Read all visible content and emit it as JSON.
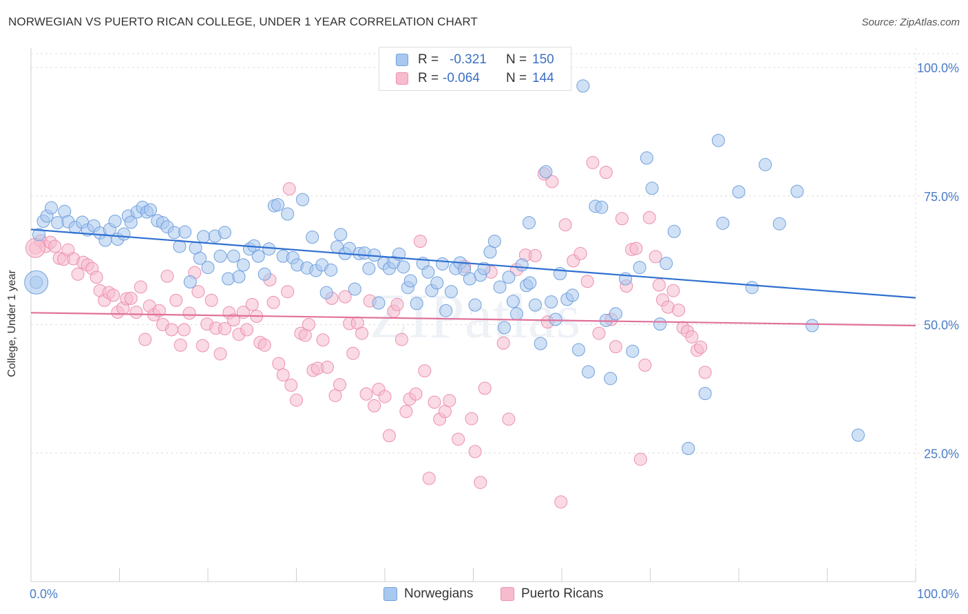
{
  "title": "NORWEGIAN VS PUERTO RICAN COLLEGE, UNDER 1 YEAR CORRELATION CHART",
  "source": "Source: ZipAtlas.com",
  "watermark": "ZIPatlas",
  "legend": {
    "rows": [
      {
        "r_label": "R =",
        "r_value": "-0.321",
        "n_label": "N =",
        "n_value": "150"
      },
      {
        "r_label": "R =",
        "r_value": "-0.064",
        "n_label": "N =",
        "n_value": "144"
      }
    ]
  },
  "bottom_legend": [
    "Norwegians",
    "Puerto Ricans"
  ],
  "colors": {
    "blue_fill": "#a9c8ef",
    "blue_stroke": "#6f9fdd",
    "blue_line": "#2f6fd0",
    "pink_fill": "#f6bccd",
    "pink_stroke": "#ec8fad",
    "pink_line": "#e0709a",
    "tick_text": "#4a7cc7",
    "grid": "#dcdcdc"
  },
  "chart_data": {
    "type": "scatter",
    "xlabel": "",
    "ylabel": "College, Under 1 year",
    "xlim": [
      0,
      100
    ],
    "ylim": [
      0,
      105
    ],
    "x_tick_labels": [
      "0.0%",
      "100.0%"
    ],
    "y_ticks": [
      25,
      50,
      75,
      100
    ],
    "y_tick_labels": [
      "25.0%",
      "50.0%",
      "75.0%",
      "100.0%"
    ],
    "grid": true,
    "series": [
      {
        "name": "Norwegians",
        "r": -0.321,
        "n": 150,
        "trend": {
          "x": [
            0,
            100
          ],
          "y": [
            68.5,
            55.2
          ]
        },
        "points": [
          [
            0.6,
            58.2
          ],
          [
            0.9,
            67.5
          ],
          [
            1.4,
            70.1
          ],
          [
            1.8,
            71.1
          ],
          [
            2.3,
            72.7
          ],
          [
            3.0,
            69.8
          ],
          [
            3.8,
            72.0
          ],
          [
            4.2,
            70.0
          ],
          [
            5.0,
            68.9
          ],
          [
            5.8,
            69.9
          ],
          [
            6.4,
            68.4
          ],
          [
            7.1,
            69.2
          ],
          [
            7.8,
            67.8
          ],
          [
            8.4,
            66.4
          ],
          [
            8.9,
            68.5
          ],
          [
            9.5,
            70.1
          ],
          [
            9.8,
            66.6
          ],
          [
            10.5,
            67.6
          ],
          [
            11.0,
            71.1
          ],
          [
            11.3,
            69.9
          ],
          [
            12.0,
            71.9
          ],
          [
            12.6,
            72.8
          ],
          [
            13.1,
            71.9
          ],
          [
            13.5,
            72.3
          ],
          [
            14.3,
            70.2
          ],
          [
            14.9,
            69.8
          ],
          [
            15.4,
            69.0
          ],
          [
            16.2,
            67.9
          ],
          [
            16.8,
            65.2
          ],
          [
            17.4,
            68.0
          ],
          [
            18.0,
            58.3
          ],
          [
            18.6,
            64.9
          ],
          [
            19.1,
            62.9
          ],
          [
            19.5,
            67.1
          ],
          [
            20.0,
            61.1
          ],
          [
            20.8,
            67.2
          ],
          [
            21.4,
            63.3
          ],
          [
            21.9,
            67.9
          ],
          [
            22.3,
            58.9
          ],
          [
            22.9,
            63.3
          ],
          [
            23.5,
            59.3
          ],
          [
            24.0,
            61.6
          ],
          [
            24.7,
            64.7
          ],
          [
            25.2,
            65.3
          ],
          [
            25.7,
            63.3
          ],
          [
            26.4,
            59.8
          ],
          [
            26.9,
            64.7
          ],
          [
            27.5,
            73.1
          ],
          [
            27.9,
            73.3
          ],
          [
            28.5,
            63.3
          ],
          [
            29.0,
            71.5
          ],
          [
            29.6,
            63.0
          ],
          [
            30.1,
            61.6
          ],
          [
            30.7,
            74.3
          ],
          [
            31.2,
            61.0
          ],
          [
            31.8,
            67.0
          ],
          [
            32.2,
            60.5
          ],
          [
            32.9,
            61.6
          ],
          [
            33.4,
            56.2
          ],
          [
            33.9,
            60.6
          ],
          [
            34.6,
            65.1
          ],
          [
            35.0,
            67.5
          ],
          [
            35.5,
            63.8
          ],
          [
            36.0,
            64.8
          ],
          [
            36.6,
            56.9
          ],
          [
            37.1,
            63.8
          ],
          [
            37.7,
            63.9
          ],
          [
            38.2,
            60.9
          ],
          [
            38.8,
            63.5
          ],
          [
            39.3,
            54.2
          ],
          [
            39.9,
            61.9
          ],
          [
            40.5,
            60.9
          ],
          [
            41.0,
            62.1
          ],
          [
            41.6,
            63.7
          ],
          [
            42.1,
            61.2
          ],
          [
            42.6,
            57.2
          ],
          [
            42.9,
            58.5
          ],
          [
            43.6,
            54.1
          ],
          [
            44.3,
            61.9
          ],
          [
            44.9,
            60.2
          ],
          [
            45.3,
            56.6
          ],
          [
            45.9,
            58.1
          ],
          [
            46.5,
            61.8
          ],
          [
            46.9,
            52.7
          ],
          [
            47.5,
            56.4
          ],
          [
            48.0,
            60.9
          ],
          [
            48.5,
            62.0
          ],
          [
            49.0,
            60.7
          ],
          [
            49.6,
            58.9
          ],
          [
            50.2,
            53.8
          ],
          [
            50.8,
            59.6
          ],
          [
            51.2,
            60.9
          ],
          [
            51.9,
            64.1
          ],
          [
            52.4,
            66.2
          ],
          [
            53.0,
            57.3
          ],
          [
            53.5,
            49.4
          ],
          [
            54.0,
            59.2
          ],
          [
            54.5,
            54.5
          ],
          [
            54.9,
            52.1
          ],
          [
            55.5,
            61.6
          ],
          [
            56.0,
            57.6
          ],
          [
            56.4,
            58.1
          ],
          [
            57.0,
            53.8
          ],
          [
            57.6,
            46.3
          ],
          [
            58.2,
            79.7
          ],
          [
            58.8,
            54.4
          ],
          [
            59.3,
            51.0
          ],
          [
            59.8,
            59.9
          ],
          [
            60.6,
            54.9
          ],
          [
            61.2,
            55.7
          ],
          [
            61.9,
            45.1
          ],
          [
            62.4,
            96.4
          ],
          [
            63.0,
            40.8
          ],
          [
            63.8,
            73.0
          ],
          [
            64.5,
            72.8
          ],
          [
            65.0,
            50.8
          ],
          [
            65.5,
            39.5
          ],
          [
            66.1,
            52.1
          ],
          [
            67.2,
            58.9
          ],
          [
            68.0,
            44.8
          ],
          [
            68.8,
            61.1
          ],
          [
            69.6,
            82.4
          ],
          [
            70.2,
            76.5
          ],
          [
            71.1,
            50.1
          ],
          [
            71.8,
            61.9
          ],
          [
            72.7,
            68.1
          ],
          [
            74.3,
            25.9
          ],
          [
            76.2,
            36.6
          ],
          [
            77.7,
            85.8
          ],
          [
            78.2,
            69.7
          ],
          [
            80.0,
            75.8
          ],
          [
            81.5,
            57.2
          ],
          [
            83.0,
            81.1
          ],
          [
            84.6,
            69.6
          ],
          [
            86.6,
            75.9
          ],
          [
            88.3,
            49.8
          ],
          [
            93.5,
            28.5
          ],
          [
            56.3,
            69.8
          ]
        ]
      },
      {
        "name": "Puerto Ricans",
        "r": -0.064,
        "n": 144,
        "trend": {
          "x": [
            0,
            100
          ],
          "y": [
            52.3,
            49.8
          ]
        },
        "points": [
          [
            0.5,
            64.9
          ],
          [
            1.1,
            66.3
          ],
          [
            1.7,
            65.2
          ],
          [
            2.2,
            66.0
          ],
          [
            2.7,
            65.2
          ],
          [
            3.2,
            62.9
          ],
          [
            3.7,
            62.7
          ],
          [
            4.2,
            64.5
          ],
          [
            4.8,
            62.8
          ],
          [
            5.3,
            59.8
          ],
          [
            5.9,
            62.1
          ],
          [
            6.4,
            61.6
          ],
          [
            6.9,
            60.9
          ],
          [
            7.4,
            59.2
          ],
          [
            7.8,
            56.6
          ],
          [
            8.3,
            54.7
          ],
          [
            8.8,
            56.2
          ],
          [
            9.3,
            55.7
          ],
          [
            9.8,
            52.4
          ],
          [
            10.4,
            53.2
          ],
          [
            10.8,
            55.0
          ],
          [
            11.3,
            55.1
          ],
          [
            11.9,
            52.4
          ],
          [
            12.4,
            57.3
          ],
          [
            12.9,
            47.1
          ],
          [
            13.4,
            53.6
          ],
          [
            13.9,
            51.9
          ],
          [
            14.5,
            52.7
          ],
          [
            14.9,
            50.0
          ],
          [
            15.4,
            59.4
          ],
          [
            15.9,
            49.0
          ],
          [
            16.4,
            54.7
          ],
          [
            16.9,
            46.0
          ],
          [
            17.3,
            49.0
          ],
          [
            17.9,
            52.2
          ],
          [
            18.5,
            60.1
          ],
          [
            18.9,
            56.4
          ],
          [
            19.4,
            45.9
          ],
          [
            19.9,
            50.1
          ],
          [
            20.4,
            54.7
          ],
          [
            20.9,
            49.3
          ],
          [
            21.4,
            44.3
          ],
          [
            21.9,
            49.2
          ],
          [
            22.4,
            52.3
          ],
          [
            22.9,
            50.9
          ],
          [
            23.5,
            48.1
          ],
          [
            24.0,
            52.4
          ],
          [
            24.4,
            49.0
          ],
          [
            25.0,
            53.9
          ],
          [
            25.5,
            51.6
          ],
          [
            25.9,
            46.5
          ],
          [
            26.4,
            46.0
          ],
          [
            27.0,
            58.7
          ],
          [
            27.4,
            54.3
          ],
          [
            28.0,
            42.4
          ],
          [
            28.5,
            40.2
          ],
          [
            29.0,
            56.4
          ],
          [
            29.4,
            38.2
          ],
          [
            30.0,
            35.3
          ],
          [
            30.5,
            48.3
          ],
          [
            31.0,
            47.9
          ],
          [
            31.4,
            50.0
          ],
          [
            31.9,
            41.1
          ],
          [
            32.4,
            41.5
          ],
          [
            33.0,
            47.0
          ],
          [
            33.5,
            41.7
          ],
          [
            34.0,
            55.1
          ],
          [
            34.4,
            36.2
          ],
          [
            34.9,
            38.3
          ],
          [
            35.5,
            55.4
          ],
          [
            36.0,
            50.2
          ],
          [
            36.4,
            44.4
          ],
          [
            36.9,
            50.3
          ],
          [
            37.4,
            48.3
          ],
          [
            37.9,
            36.5
          ],
          [
            38.3,
            54.6
          ],
          [
            38.8,
            34.2
          ],
          [
            39.3,
            37.4
          ],
          [
            40.0,
            36.0
          ],
          [
            40.5,
            28.4
          ],
          [
            41.0,
            52.6
          ],
          [
            41.4,
            53.9
          ],
          [
            41.9,
            47.1
          ],
          [
            42.4,
            33.1
          ],
          [
            42.8,
            35.5
          ],
          [
            43.5,
            36.5
          ],
          [
            44.0,
            66.2
          ],
          [
            44.5,
            41.0
          ],
          [
            45.0,
            20.1
          ],
          [
            45.6,
            34.9
          ],
          [
            46.2,
            31.6
          ],
          [
            46.8,
            33.1
          ],
          [
            47.3,
            35.2
          ],
          [
            48.3,
            27.7
          ],
          [
            49.0,
            61.3
          ],
          [
            49.8,
            31.7
          ],
          [
            50.2,
            25.3
          ],
          [
            50.8,
            19.3
          ],
          [
            51.3,
            37.6
          ],
          [
            52.0,
            60.2
          ],
          [
            53.4,
            46.4
          ],
          [
            54.0,
            31.6
          ],
          [
            54.9,
            60.7
          ],
          [
            55.9,
            63.5
          ],
          [
            57.0,
            63.4
          ],
          [
            58.0,
            79.3
          ],
          [
            58.9,
            77.8
          ],
          [
            59.9,
            15.5
          ],
          [
            60.4,
            69.4
          ],
          [
            61.3,
            62.4
          ],
          [
            62.1,
            63.8
          ],
          [
            62.9,
            58.4
          ],
          [
            63.5,
            81.5
          ],
          [
            64.2,
            48.3
          ],
          [
            65.0,
            79.6
          ],
          [
            65.6,
            51.0
          ],
          [
            66.1,
            45.7
          ],
          [
            66.8,
            70.6
          ],
          [
            67.3,
            57.5
          ],
          [
            67.9,
            64.6
          ],
          [
            68.4,
            64.8
          ],
          [
            68.9,
            23.8
          ],
          [
            69.4,
            42.1
          ],
          [
            69.9,
            70.8
          ],
          [
            70.6,
            63.2
          ],
          [
            71.0,
            57.7
          ],
          [
            71.4,
            54.8
          ],
          [
            72.0,
            53.4
          ],
          [
            72.6,
            56.6
          ],
          [
            73.2,
            52.8
          ],
          [
            73.7,
            49.4
          ],
          [
            74.2,
            48.7
          ],
          [
            74.7,
            47.6
          ],
          [
            75.3,
            45.0
          ],
          [
            75.7,
            45.6
          ],
          [
            76.2,
            40.7
          ],
          [
            29.2,
            76.4
          ],
          [
            58.4,
            50.5
          ]
        ]
      }
    ]
  }
}
